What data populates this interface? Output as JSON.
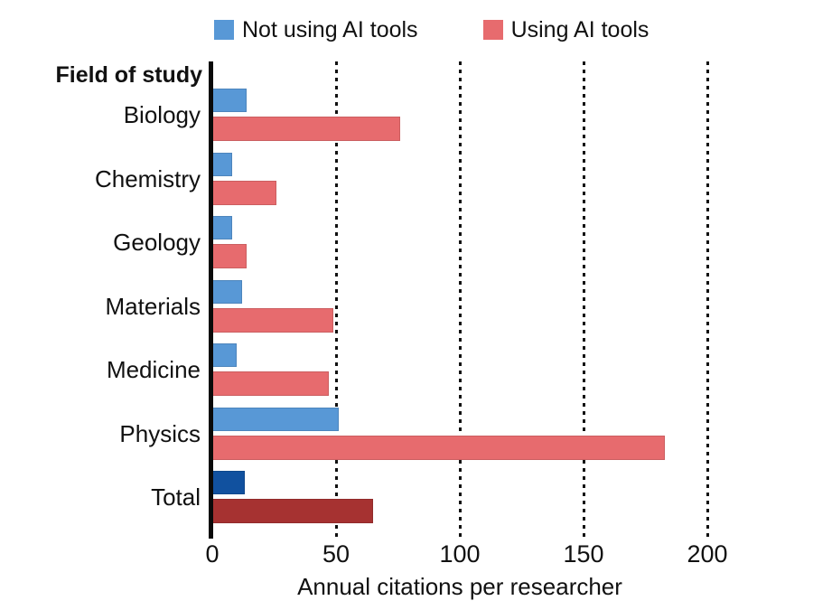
{
  "figure": {
    "background": "#ffffff",
    "text_color": "#111111"
  },
  "legend": {
    "items": [
      {
        "label": "Not using AI tools",
        "color": "#5898D6"
      },
      {
        "label": "Using AI tools",
        "color": "#E76B6E"
      }
    ]
  },
  "axis": {
    "y_header": "Field of study",
    "xlabel": "Annual citations per researcher",
    "ticks": [
      0,
      50,
      100,
      150,
      200
    ],
    "gridline_values": [
      50,
      100,
      150,
      200
    ]
  },
  "chart_data": {
    "type": "bar",
    "orientation": "horizontal",
    "title": "",
    "xlabel": "Annual citations per researcher",
    "ylabel": "Field of study",
    "xlim": [
      0,
      215
    ],
    "grid": "vertical-dotted-at-50-100-150-200",
    "legend_position": "top",
    "categories": [
      "Biology",
      "Chemistry",
      "Geology",
      "Materials",
      "Medicine",
      "Physics",
      "Total"
    ],
    "series": [
      {
        "name": "Not using AI tools",
        "color": "#5898D6",
        "total_row_color": "#11519F",
        "values": [
          14,
          8,
          8,
          12,
          10,
          51,
          13
        ]
      },
      {
        "name": "Using AI tools",
        "color": "#E76B6E",
        "total_row_color": "#A63231",
        "values": [
          76,
          26,
          14,
          49,
          47,
          183,
          65
        ]
      }
    ]
  }
}
